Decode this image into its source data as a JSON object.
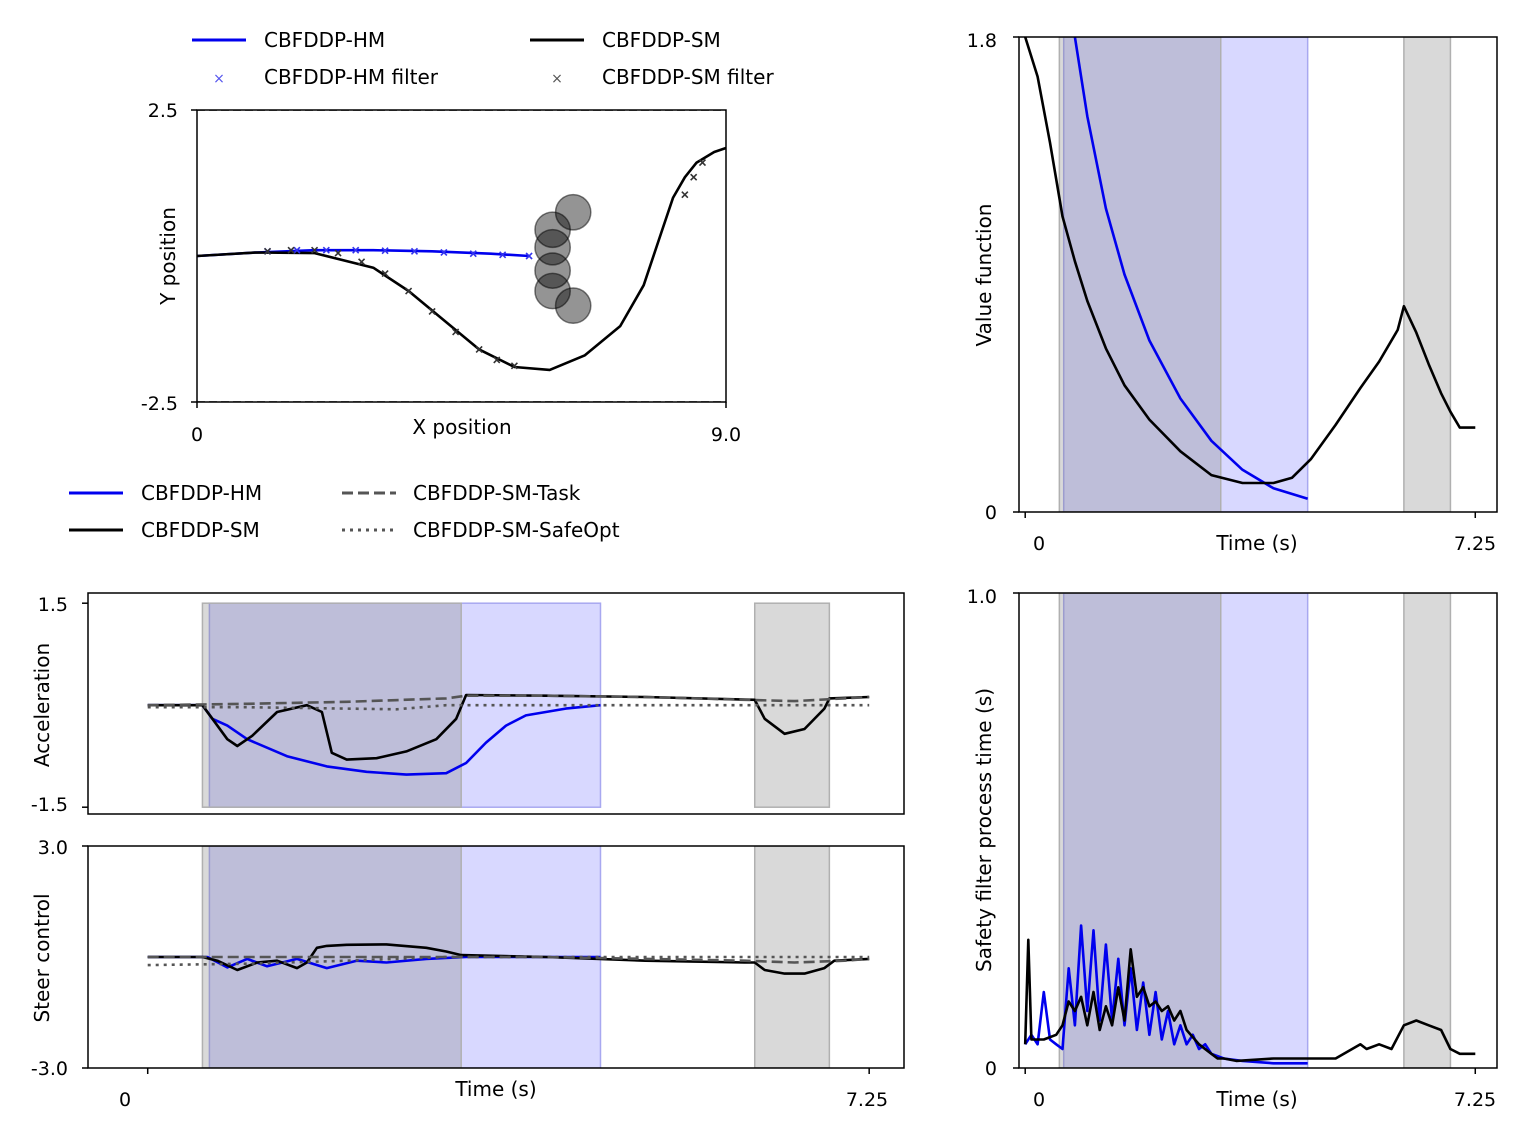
{
  "legends": {
    "traj_legend": [
      {
        "label": "CBFDDP-HM",
        "style": "line",
        "color": "#0000ee"
      },
      {
        "label": "CBFDDP-SM",
        "style": "line",
        "color": "#000000"
      },
      {
        "label": "CBFDDP-HM filter",
        "style": "x",
        "color": "#5555ee"
      },
      {
        "label": "CBFDDP-SM filter",
        "style": "x",
        "color": "#555555"
      }
    ],
    "control_legend": [
      {
        "label": "CBFDDP-HM",
        "style": "line",
        "color": "#0000ee"
      },
      {
        "label": "CBFDDP-SM",
        "style": "line",
        "color": "#000000"
      },
      {
        "label": "CBFDDP-SM-Task",
        "style": "dashed",
        "color": "#555555"
      },
      {
        "label": "CBFDDP-SM-SafeOpt",
        "style": "dotted",
        "color": "#555555"
      }
    ]
  },
  "colors": {
    "hm": "#0000ee",
    "sm": "#000000",
    "task": "#555555",
    "hm_shade": "#d8d8ff",
    "sm_shade": "#d8d8d8",
    "overlap_shade": "#b7b9d8"
  },
  "chart_data": [
    {
      "id": "trajectory",
      "type": "line",
      "xlabel": "X position",
      "ylabel": "Y position",
      "xlim": [
        0,
        9.0
      ],
      "ylim": [
        -2.5,
        2.5
      ],
      "xticks": [
        "0",
        "9.0"
      ],
      "yticks": [
        "-2.5",
        "2.5"
      ],
      "boundaries": [
        -2.5,
        2.5
      ],
      "obstacles": [
        {
          "x": 6.4,
          "y": 0.75,
          "r": 0.3
        },
        {
          "x": 6.05,
          "y": 0.45,
          "r": 0.3
        },
        {
          "x": 6.05,
          "y": 0.15,
          "r": 0.3
        },
        {
          "x": 6.05,
          "y": -0.25,
          "r": 0.3
        },
        {
          "x": 6.05,
          "y": -0.6,
          "r": 0.3
        },
        {
          "x": 6.4,
          "y": -0.85,
          "r": 0.3
        }
      ],
      "series": [
        {
          "name": "CBFDDP-HM",
          "x": [
            0,
            1,
            2,
            3,
            4,
            5,
            5.65
          ],
          "y": [
            0,
            0.06,
            0.1,
            0.1,
            0.08,
            0.04,
            0.0
          ]
        },
        {
          "name": "CBFDDP-SM",
          "x": [
            0,
            1,
            2,
            3,
            3.6,
            4.2,
            4.8,
            5.4,
            6.0,
            6.6,
            7.2,
            7.6,
            7.9,
            8.1,
            8.3,
            8.5,
            8.8,
            9.0
          ],
          "y": [
            0,
            0.06,
            0.05,
            -0.2,
            -0.6,
            -1.1,
            -1.6,
            -1.9,
            -1.95,
            -1.7,
            -1.2,
            -0.5,
            0.4,
            1.0,
            1.35,
            1.6,
            1.78,
            1.85
          ]
        },
        {
          "name": "CBFDDP-HM filter",
          "x": [
            1.2,
            1.7,
            2.2,
            2.7,
            3.2,
            3.7,
            4.2,
            4.7,
            5.2,
            5.65
          ],
          "y": [
            0.08,
            0.1,
            0.1,
            0.1,
            0.09,
            0.08,
            0.06,
            0.04,
            0.02,
            0.0
          ]
        },
        {
          "name": "CBFDDP-SM filter",
          "x": [
            1.2,
            1.6,
            2.0,
            2.4,
            2.8,
            3.2,
            3.6,
            4.0,
            4.4,
            4.8,
            5.1,
            5.4,
            8.3,
            8.45,
            8.6
          ],
          "y": [
            0.08,
            0.1,
            0.1,
            0.05,
            -0.1,
            -0.3,
            -0.6,
            -0.95,
            -1.3,
            -1.6,
            -1.78,
            -1.88,
            1.05,
            1.35,
            1.6
          ]
        }
      ]
    },
    {
      "id": "value_function",
      "type": "line",
      "xlabel": "Time (s)",
      "ylabel": "Value function",
      "xlim": [
        -0.1,
        7.6
      ],
      "ylim": [
        0,
        1.8
      ],
      "xticks": [
        "0",
        "7.25"
      ],
      "yticks": [
        "0",
        "1.8"
      ],
      "shaded_regions": [
        {
          "series": "CBFDDP-SM",
          "ranges": [
            [
              0.55,
              3.15
            ],
            [
              6.1,
              6.85
            ]
          ]
        },
        {
          "series": "CBFDDP-HM",
          "ranges": [
            [
              0.62,
              4.55
            ]
          ]
        }
      ],
      "series": [
        {
          "name": "CBFDDP-HM",
          "x": [
            0.8,
            1.0,
            1.3,
            1.6,
            2.0,
            2.5,
            3.0,
            3.5,
            4.0,
            4.55
          ],
          "y": [
            1.8,
            1.5,
            1.15,
            0.9,
            0.65,
            0.43,
            0.27,
            0.16,
            0.09,
            0.05
          ]
        },
        {
          "name": "CBFDDP-SM",
          "x": [
            0.0,
            0.2,
            0.4,
            0.6,
            0.8,
            1.0,
            1.3,
            1.6,
            2.0,
            2.5,
            3.0,
            3.5,
            4.0,
            4.3,
            4.6,
            5.0,
            5.4,
            5.7,
            6.0,
            6.1,
            6.3,
            6.5,
            6.7,
            6.85,
            7.0,
            7.25
          ],
          "y": [
            1.8,
            1.65,
            1.4,
            1.12,
            0.95,
            0.8,
            0.62,
            0.48,
            0.35,
            0.23,
            0.14,
            0.11,
            0.11,
            0.13,
            0.2,
            0.33,
            0.47,
            0.57,
            0.69,
            0.78,
            0.68,
            0.56,
            0.45,
            0.38,
            0.32,
            0.32
          ]
        }
      ]
    },
    {
      "id": "acceleration",
      "type": "line",
      "ylabel": "Acceleration",
      "xlim": [
        -0.6,
        7.6
      ],
      "ylim": [
        -1.6,
        1.65
      ],
      "yticks": [
        "-1.5",
        "1.5"
      ],
      "shaded_regions": [
        {
          "series": "CBFDDP-SM",
          "ranges": [
            [
              0.55,
              3.15
            ],
            [
              6.1,
              6.85
            ]
          ]
        },
        {
          "series": "CBFDDP-HM",
          "ranges": [
            [
              0.62,
              4.55
            ]
          ]
        }
      ],
      "series": [
        {
          "name": "CBFDDP-HM",
          "x": [
            0.0,
            0.55,
            0.65,
            0.8,
            1.0,
            1.4,
            1.8,
            2.2,
            2.6,
            3.0,
            3.2,
            3.4,
            3.6,
            3.8,
            4.0,
            4.2,
            4.55
          ],
          "y": [
            0.0,
            0.0,
            -0.2,
            -0.3,
            -0.5,
            -0.75,
            -0.9,
            -0.98,
            -1.02,
            -1.0,
            -0.85,
            -0.55,
            -0.3,
            -0.15,
            -0.1,
            -0.05,
            0.0
          ]
        },
        {
          "name": "CBFDDP-SM",
          "x": [
            0.0,
            0.55,
            0.65,
            0.8,
            0.9,
            1.05,
            1.3,
            1.6,
            1.75,
            1.85,
            2.0,
            2.3,
            2.6,
            2.9,
            3.1,
            3.2,
            4.0,
            5.0,
            6.1,
            6.2,
            6.4,
            6.6,
            6.8,
            6.85,
            7.25
          ],
          "y": [
            0.0,
            0.0,
            -0.2,
            -0.5,
            -0.6,
            -0.45,
            -0.1,
            0.0,
            -0.1,
            -0.7,
            -0.8,
            -0.78,
            -0.68,
            -0.5,
            -0.2,
            0.15,
            0.14,
            0.12,
            0.08,
            -0.2,
            -0.42,
            -0.35,
            -0.05,
            0.1,
            0.12
          ]
        },
        {
          "name": "CBFDDP-SM-Task",
          "x": [
            0.0,
            1.0,
            2.0,
            3.0,
            3.2,
            4.0,
            5.0,
            6.0,
            6.5,
            7.0,
            7.25
          ],
          "y": [
            0.0,
            0.02,
            0.05,
            0.1,
            0.14,
            0.14,
            0.12,
            0.08,
            0.06,
            0.1,
            0.12
          ]
        },
        {
          "name": "CBFDDP-SM-SafeOpt",
          "x": [
            0.0,
            1.0,
            2.0,
            2.5,
            3.0,
            4.0,
            5.0,
            6.0,
            7.25
          ],
          "y": [
            -0.03,
            -0.03,
            -0.05,
            -0.06,
            0.0,
            0.0,
            0.0,
            0.0,
            0.0
          ]
        }
      ]
    },
    {
      "id": "steer_control",
      "type": "line",
      "ylabel": "Steer control",
      "xlabel": "Time (s)",
      "xlim": [
        -0.6,
        7.6
      ],
      "ylim": [
        -3.0,
        3.0
      ],
      "xticks": [
        "0",
        "7.25"
      ],
      "yticks": [
        "-3.0",
        "3.0"
      ],
      "shaded_regions": [
        {
          "series": "CBFDDP-SM",
          "ranges": [
            [
              0.55,
              3.15
            ],
            [
              6.1,
              6.85
            ]
          ]
        },
        {
          "series": "CBFDDP-HM",
          "ranges": [
            [
              0.62,
              4.55
            ]
          ]
        }
      ],
      "series": [
        {
          "name": "CBFDDP-HM",
          "x": [
            0.0,
            0.6,
            0.8,
            1.0,
            1.2,
            1.5,
            1.8,
            2.1,
            2.4,
            2.8,
            3.2,
            3.6,
            4.0,
            4.55
          ],
          "y": [
            0.0,
            0.0,
            -0.28,
            -0.05,
            -0.25,
            -0.05,
            -0.3,
            -0.1,
            -0.15,
            -0.05,
            0.0,
            0.0,
            0.0,
            0.0
          ]
        },
        {
          "name": "CBFDDP-SM",
          "x": [
            0.0,
            0.55,
            0.7,
            0.9,
            1.1,
            1.3,
            1.5,
            1.6,
            1.7,
            1.8,
            2.0,
            2.4,
            2.8,
            3.0,
            3.15,
            4.0,
            5.0,
            6.0,
            6.1,
            6.2,
            6.4,
            6.6,
            6.8,
            6.9,
            7.25
          ],
          "y": [
            0.0,
            0.0,
            -0.1,
            -0.35,
            -0.15,
            -0.1,
            -0.3,
            -0.15,
            0.25,
            0.3,
            0.33,
            0.34,
            0.25,
            0.15,
            0.05,
            0.0,
            -0.1,
            -0.15,
            -0.15,
            -0.35,
            -0.45,
            -0.45,
            -0.3,
            -0.1,
            -0.05
          ]
        },
        {
          "name": "CBFDDP-SM-Task",
          "x": [
            0.0,
            1.0,
            2.0,
            3.15,
            4.0,
            5.0,
            6.0,
            6.5,
            7.0,
            7.25
          ],
          "y": [
            0.0,
            0.0,
            0.0,
            0.0,
            0.0,
            -0.05,
            -0.1,
            -0.15,
            -0.1,
            -0.05
          ]
        },
        {
          "name": "CBFDDP-SM-SafeOpt",
          "x": [
            0.0,
            1.0,
            2.0,
            3.0,
            4.0,
            5.0,
            6.0,
            7.25
          ],
          "y": [
            -0.22,
            -0.18,
            -0.1,
            0.0,
            0.0,
            0.0,
            0.0,
            0.0
          ]
        }
      ]
    },
    {
      "id": "process_time",
      "type": "line",
      "ylabel": "Safety filter process time (s)",
      "xlabel": "Time (s)",
      "xlim": [
        -0.1,
        7.6
      ],
      "ylim": [
        0,
        1.0
      ],
      "xticks": [
        "0",
        "7.25"
      ],
      "yticks": [
        "0",
        "1.0"
      ],
      "shaded_regions": [
        {
          "series": "CBFDDP-SM",
          "ranges": [
            [
              0.55,
              3.15
            ],
            [
              6.1,
              6.85
            ]
          ]
        },
        {
          "series": "CBFDDP-HM",
          "ranges": [
            [
              0.62,
              4.55
            ]
          ]
        }
      ],
      "series": [
        {
          "name": "CBFDDP-HM",
          "x": [
            0.0,
            0.1,
            0.2,
            0.3,
            0.4,
            0.5,
            0.6,
            0.7,
            0.8,
            0.9,
            1.0,
            1.1,
            1.2,
            1.3,
            1.4,
            1.5,
            1.6,
            1.7,
            1.8,
            1.9,
            2.0,
            2.1,
            2.2,
            2.3,
            2.4,
            2.5,
            2.6,
            2.7,
            2.8,
            2.9,
            3.0,
            3.2,
            3.5,
            4.0,
            4.55
          ],
          "y": [
            0.05,
            0.07,
            0.05,
            0.16,
            0.06,
            0.05,
            0.04,
            0.21,
            0.09,
            0.3,
            0.12,
            0.29,
            0.1,
            0.26,
            0.1,
            0.23,
            0.09,
            0.21,
            0.08,
            0.18,
            0.07,
            0.16,
            0.06,
            0.12,
            0.05,
            0.09,
            0.05,
            0.07,
            0.04,
            0.05,
            0.03,
            0.02,
            0.015,
            0.01,
            0.01
          ]
        },
        {
          "name": "CBFDDP-SM",
          "x": [
            0.0,
            0.05,
            0.1,
            0.3,
            0.5,
            0.6,
            0.7,
            0.8,
            0.9,
            1.0,
            1.1,
            1.2,
            1.3,
            1.4,
            1.5,
            1.6,
            1.7,
            1.8,
            1.9,
            2.0,
            2.1,
            2.2,
            2.3,
            2.4,
            2.5,
            2.6,
            2.8,
            3.0,
            3.1,
            3.2,
            3.4,
            4.0,
            5.0,
            5.4,
            5.5,
            5.7,
            5.9,
            6.1,
            6.3,
            6.5,
            6.7,
            6.85,
            7.0,
            7.25
          ],
          "y": [
            0.05,
            0.27,
            0.06,
            0.06,
            0.07,
            0.09,
            0.14,
            0.12,
            0.15,
            0.09,
            0.16,
            0.08,
            0.13,
            0.09,
            0.17,
            0.1,
            0.25,
            0.15,
            0.17,
            0.13,
            0.14,
            0.12,
            0.13,
            0.1,
            0.12,
            0.08,
            0.05,
            0.03,
            0.02,
            0.02,
            0.015,
            0.02,
            0.02,
            0.05,
            0.04,
            0.05,
            0.04,
            0.09,
            0.1,
            0.09,
            0.08,
            0.04,
            0.03,
            0.03
          ]
        }
      ]
    }
  ]
}
